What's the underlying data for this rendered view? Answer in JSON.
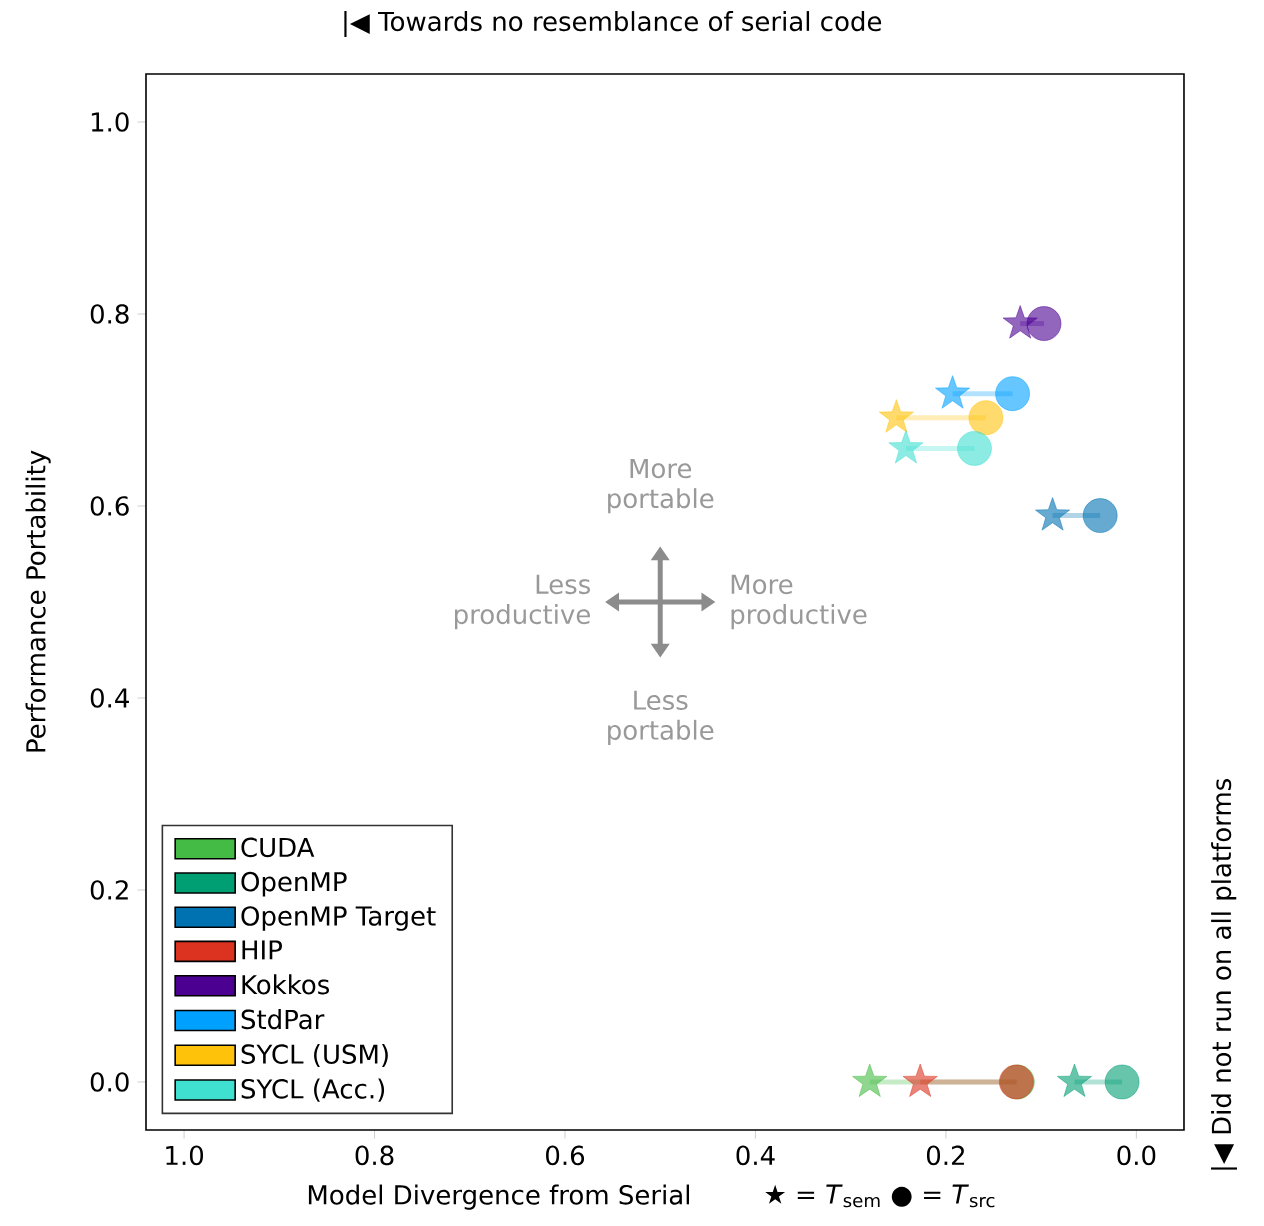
{
  "chart_data": {
    "type": "scatter",
    "xlabel": "Model Divergence from Serial",
    "ylabel": "Performance Portability",
    "xlim": [
      1.04,
      -0.05
    ],
    "ylim": [
      -0.05,
      1.05
    ],
    "xticks": [
      {
        "value": 1.0,
        "label": "1.0"
      },
      {
        "value": 0.8,
        "label": "0.8"
      },
      {
        "value": 0.6,
        "label": "0.6"
      },
      {
        "value": 0.4,
        "label": "0.4"
      },
      {
        "value": 0.2,
        "label": "0.2"
      },
      {
        "value": 0.0,
        "label": "0.0"
      }
    ],
    "yticks": [
      {
        "value": 0.0,
        "label": "0.0"
      },
      {
        "value": 0.2,
        "label": "0.2"
      },
      {
        "value": 0.4,
        "label": "0.4"
      },
      {
        "value": 0.6,
        "label": "0.6"
      },
      {
        "value": 0.8,
        "label": "0.8"
      },
      {
        "value": 1.0,
        "label": "1.0"
      }
    ],
    "legend": "bottom left",
    "annotations": [
      "|◀ Towards no resemblance of serial code",
      "|◀ Did not run on all platforms",
      "More portable",
      "Less portable",
      "Less productive",
      "More productive",
      "★ = *T*$_{sem}$  ● = *T*$_{src}$"
    ],
    "series": [
      {
        "name": "CUDA",
        "color": "#44bb44",
        "type": "line",
        "marker": [
          "star",
          "circle"
        ],
        "x": [
          0.28,
          0.125
        ],
        "values": [
          0.0,
          0.0
        ]
      },
      {
        "name": "OpenMP",
        "color": "#009e73",
        "type": "line",
        "marker": [
          "star",
          "circle"
        ],
        "x": [
          0.065,
          0.015
        ],
        "values": [
          0.0,
          0.0
        ]
      },
      {
        "name": "OpenMP Target",
        "color": "#0072b2",
        "type": "line",
        "marker": [
          "star",
          "circle"
        ],
        "x": [
          0.088,
          0.038
        ],
        "values": [
          0.59,
          0.59
        ]
      },
      {
        "name": "HIP",
        "color": "#dc3220",
        "type": "line",
        "marker": [
          "star",
          "circle"
        ],
        "x": [
          0.227,
          0.126
        ],
        "values": [
          0.0,
          0.0
        ]
      },
      {
        "name": "Kokkos",
        "color": "#4b0092",
        "type": "line",
        "marker": [
          "star",
          "circle"
        ],
        "x": [
          0.122,
          0.097
        ],
        "values": [
          0.79,
          0.79
        ]
      },
      {
        "name": "StdPar",
        "color": "#00a0ff",
        "type": "line",
        "marker": [
          "star",
          "circle"
        ],
        "x": [
          0.193,
          0.13
        ],
        "values": [
          0.717,
          0.717
        ]
      },
      {
        "name": "SYCL (USM)",
        "color": "#ffc20a",
        "type": "line",
        "marker": [
          "star",
          "circle"
        ],
        "x": [
          0.252,
          0.158
        ],
        "values": [
          0.692,
          0.692
        ]
      },
      {
        "name": "SYCL (Acc.)",
        "color": "#40e0d0",
        "type": "line",
        "marker": [
          "star",
          "circle"
        ],
        "x": [
          0.242,
          0.17
        ],
        "values": [
          0.66,
          0.66
        ]
      }
    ]
  }
}
